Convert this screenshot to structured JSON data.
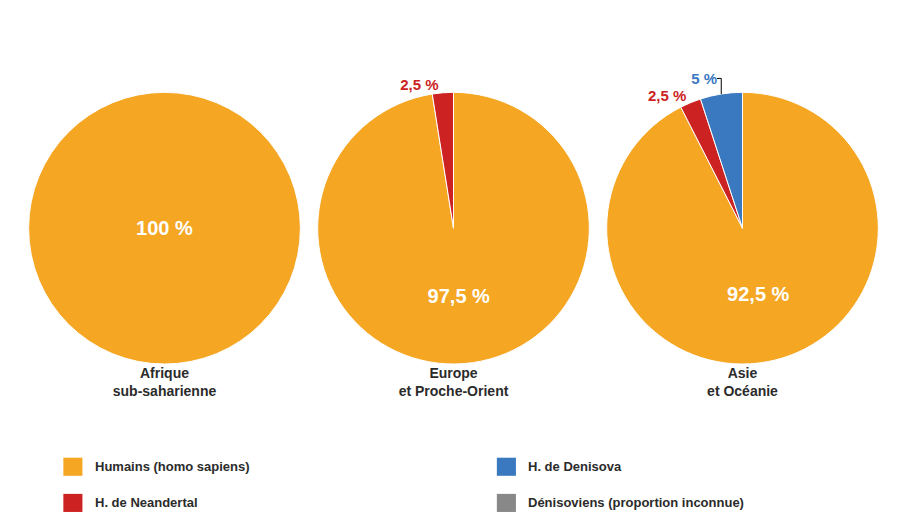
{
  "chart_data": {
    "type": "pie",
    "legend": "bottom",
    "series": [
      {
        "name": "Humains (homo sapiens)",
        "color": "#F5A623"
      },
      {
        "name": "H. de Neandertal",
        "color": "#CC2222"
      },
      {
        "name": "H. de Denisova",
        "color": "#3A78BF"
      },
      {
        "name": "Dénisoviens (proportion inconnue)",
        "color": "#888888"
      }
    ],
    "charts": [
      {
        "type": "pie",
        "title": "Afrique",
        "subtitle": "sub-saharienne",
        "categories": [
          "Humains (homo sapiens)"
        ],
        "values": [
          100
        ],
        "value_labels": [
          "100 %"
        ],
        "colors": [
          "#F5A623"
        ],
        "data_labels": true
      },
      {
        "type": "pie",
        "title": "Europe",
        "subtitle": "et Proche-Orient",
        "categories": [
          "Humains (homo sapiens)",
          "H. de Neandertal"
        ],
        "values": [
          97.5,
          2.5
        ],
        "value_labels": [
          "97,5 %",
          "2,5 %"
        ],
        "colors": [
          "#F5A623",
          "#CC2222"
        ],
        "data_labels": true
      },
      {
        "type": "pie",
        "title": "Asie",
        "subtitle": "et Océanie",
        "categories": [
          "Humains (homo sapiens)",
          "H. de Neandertal",
          "H. de Denisova"
        ],
        "values": [
          92.5,
          2.5,
          5.0
        ],
        "value_labels": [
          "92,5 %",
          "2,5 %",
          "5 %"
        ],
        "colors": [
          "#F5A623",
          "#CC2222",
          "#3A78BF"
        ],
        "data_labels": true
      }
    ]
  }
}
